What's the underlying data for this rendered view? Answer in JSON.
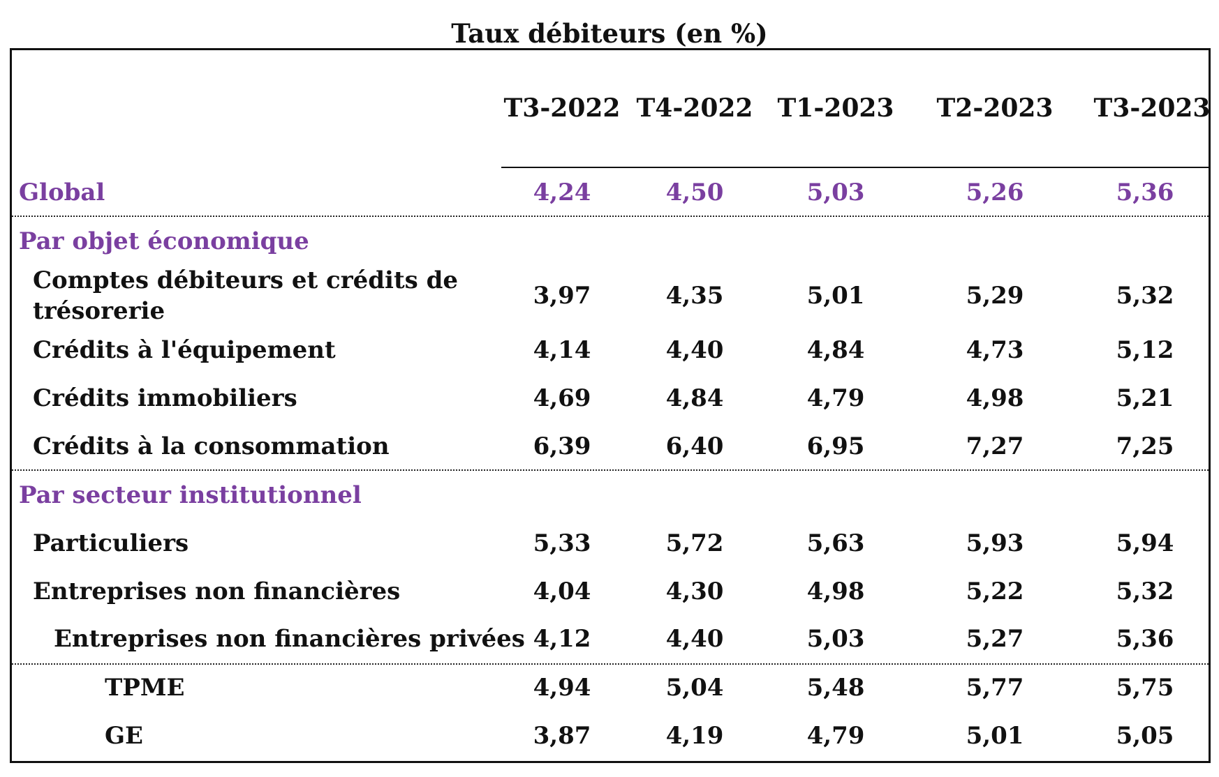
{
  "title": "Taux débiteurs (en %)",
  "columns": [
    "T3-2022",
    "T4-2022",
    "T1-2023",
    "T2-2023",
    "T3-2023"
  ],
  "colors": {
    "accent": "#7a3fa0",
    "text": "#111111"
  },
  "global": {
    "label": "Global",
    "values": [
      "4,24",
      "4,50",
      "5,03",
      "5,26",
      "5,36"
    ]
  },
  "section_objet": "Par objet économique",
  "objet_rows": [
    {
      "label_line1": "Comptes débiteurs et crédits de",
      "label_line2": "trésorerie",
      "values": [
        "3,97",
        "4,35",
        "5,01",
        "5,29",
        "5,32"
      ]
    },
    {
      "label": "Crédits à l'équipement",
      "values": [
        "4,14",
        "4,40",
        "4,84",
        "4,73",
        "5,12"
      ]
    },
    {
      "label": "Crédits immobiliers",
      "values": [
        "4,69",
        "4,84",
        "4,79",
        "4,98",
        "5,21"
      ]
    },
    {
      "label": "Crédits à la consommation",
      "values": [
        "6,39",
        "6,40",
        "6,95",
        "7,27",
        "7,25"
      ]
    }
  ],
  "section_secteur": "Par secteur institutionnel",
  "secteur_rows": [
    {
      "label": "Particuliers",
      "values": [
        "5,33",
        "5,72",
        "5,63",
        "5,93",
        "5,94"
      ]
    },
    {
      "label": "Entreprises non financières",
      "values": [
        "4,04",
        "4,30",
        "4,98",
        "5,22",
        "5,32"
      ]
    },
    {
      "label": "Entreprises non financières privées",
      "values": [
        "4,12",
        "4,40",
        "5,03",
        "5,27",
        "5,36"
      ]
    },
    {
      "label": "TPME",
      "values": [
        "4,94",
        "5,04",
        "5,48",
        "5,77",
        "5,75"
      ]
    },
    {
      "label": "GE",
      "values": [
        "3,87",
        "4,19",
        "4,79",
        "5,01",
        "5,05"
      ]
    }
  ]
}
